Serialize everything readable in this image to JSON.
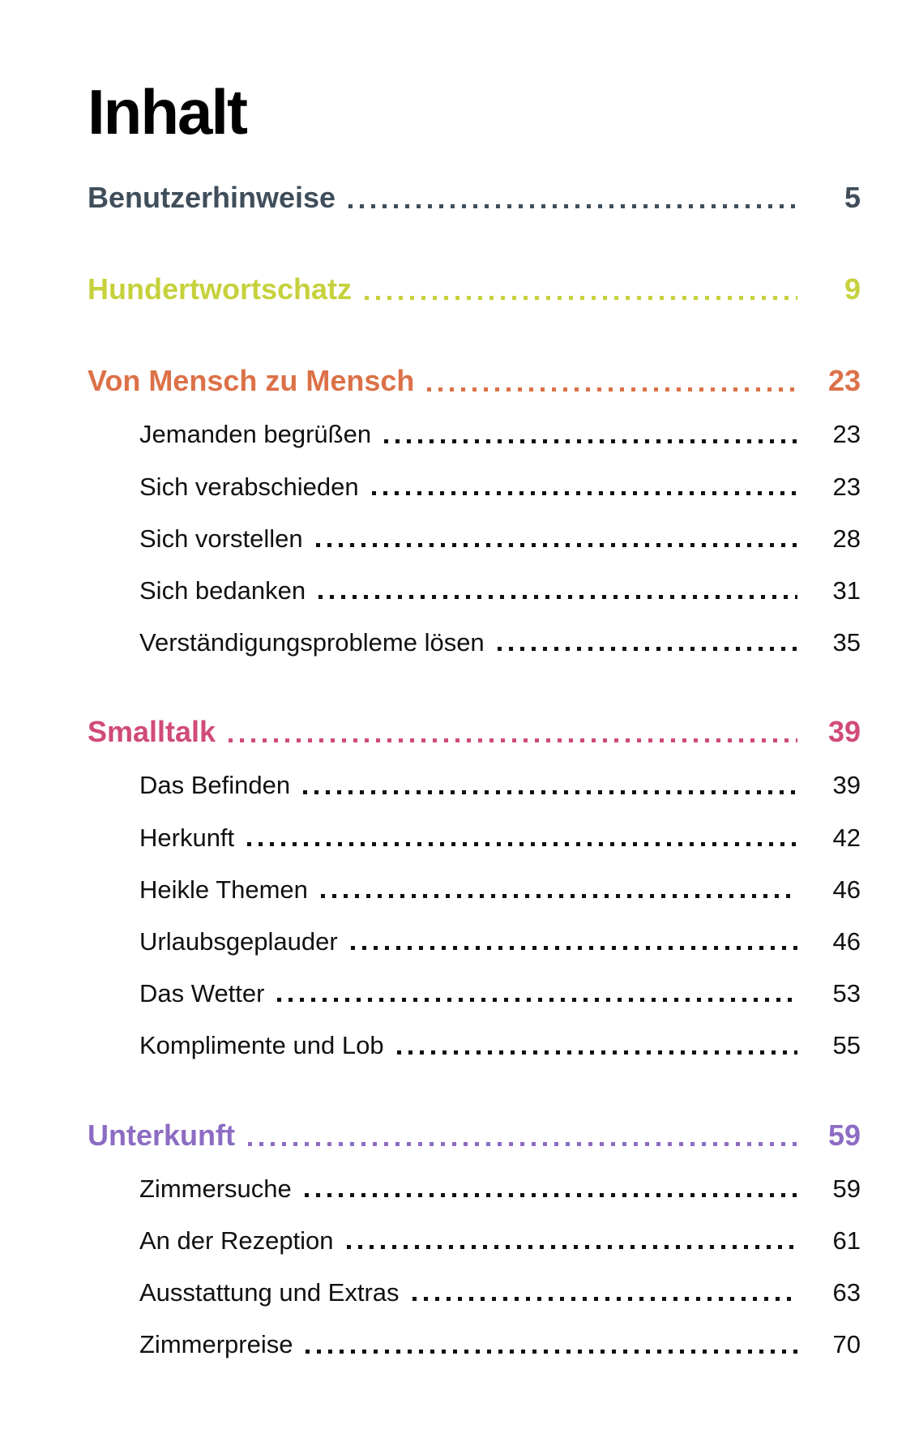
{
  "page": {
    "title": "Inhalt",
    "colors": {
      "dark": "#3f4e5a",
      "lime": "#c6d13c",
      "orange": "#dc7148",
      "pink": "#d04b79",
      "purple": "#8d6cc4",
      "text": "#111111"
    },
    "sections": [
      {
        "label": "Benutzerhinweise",
        "page": "5",
        "color_key": "dark",
        "items": []
      },
      {
        "label": "Hundertwortschatz",
        "page": "9",
        "color_key": "lime",
        "items": []
      },
      {
        "label": "Von Mensch zu Mensch",
        "page": "23",
        "color_key": "orange",
        "items": [
          {
            "label": "Jemanden begrüßen",
            "page": "23"
          },
          {
            "label": "Sich verabschieden",
            "page": "23"
          },
          {
            "label": "Sich vorstellen",
            "page": "28"
          },
          {
            "label": "Sich bedanken",
            "page": "31"
          },
          {
            "label": "Verständigungsprobleme lösen",
            "page": "35"
          }
        ]
      },
      {
        "label": "Smalltalk",
        "page": "39",
        "color_key": "pink",
        "items": [
          {
            "label": "Das Befinden",
            "page": "39"
          },
          {
            "label": "Herkunft",
            "page": "42"
          },
          {
            "label": "Heikle Themen",
            "page": "46"
          },
          {
            "label": "Urlaubsgeplauder",
            "page": "46"
          },
          {
            "label": "Das Wetter",
            "page": "53"
          },
          {
            "label": "Komplimente und Lob",
            "page": "55"
          }
        ]
      },
      {
        "label": "Unterkunft",
        "page": "59",
        "color_key": "purple",
        "items": [
          {
            "label": "Zimmersuche",
            "page": "59"
          },
          {
            "label": "An der Rezeption",
            "page": "61"
          },
          {
            "label": "Ausstattung und Extras",
            "page": "63"
          },
          {
            "label": "Zimmerpreise",
            "page": "70"
          }
        ]
      }
    ]
  }
}
